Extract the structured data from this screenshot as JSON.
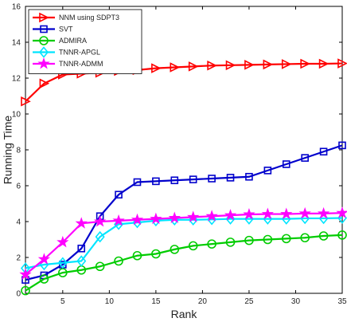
{
  "chart_data": {
    "type": "line",
    "title": "",
    "xlabel": "Rank",
    "ylabel": "Running Time",
    "xlim": [
      1,
      35
    ],
    "ylim": [
      0,
      16
    ],
    "xticks": [
      5,
      10,
      15,
      20,
      25,
      30,
      35
    ],
    "yticks": [
      0,
      2,
      4,
      6,
      8,
      10,
      12,
      14,
      16
    ],
    "grid": false,
    "legend_position": "top-left",
    "x": [
      1,
      3,
      5,
      7,
      9,
      11,
      13,
      15,
      17,
      19,
      21,
      23,
      25,
      27,
      29,
      31,
      33,
      35
    ],
    "series": [
      {
        "name": "NNM using SDPT3",
        "color": "#ff0000",
        "marker": "triangle-right",
        "values": [
          10.7,
          11.7,
          12.2,
          12.25,
          12.3,
          12.4,
          12.45,
          12.55,
          12.6,
          12.65,
          12.7,
          12.72,
          12.74,
          12.76,
          12.78,
          12.8,
          12.8,
          12.82
        ]
      },
      {
        "name": "SVT",
        "color": "#0000cc",
        "marker": "square",
        "values": [
          0.75,
          1.0,
          1.6,
          2.5,
          4.3,
          5.5,
          6.2,
          6.25,
          6.3,
          6.35,
          6.4,
          6.45,
          6.5,
          6.85,
          7.2,
          7.55,
          7.9,
          8.25
        ]
      },
      {
        "name": "ADMIRA",
        "color": "#00cc00",
        "marker": "circle",
        "values": [
          0.15,
          0.8,
          1.15,
          1.3,
          1.5,
          1.8,
          2.1,
          2.2,
          2.45,
          2.65,
          2.75,
          2.85,
          2.95,
          3.0,
          3.05,
          3.1,
          3.2,
          3.25
        ]
      },
      {
        "name": "TNNR-APGL",
        "color": "#00e5ff",
        "marker": "diamond",
        "values": [
          1.4,
          1.6,
          1.7,
          1.8,
          3.15,
          3.85,
          3.95,
          4.05,
          4.1,
          4.1,
          4.12,
          4.15,
          4.15,
          4.15,
          4.15,
          4.18,
          4.18,
          4.2
        ]
      },
      {
        "name": "TNNR-ADMM",
        "color": "#ff00ff",
        "marker": "star",
        "values": [
          1.05,
          1.9,
          2.85,
          3.9,
          4.0,
          4.05,
          4.1,
          4.15,
          4.2,
          4.25,
          4.3,
          4.35,
          4.4,
          4.42,
          4.42,
          4.45,
          4.45,
          4.48
        ]
      }
    ]
  }
}
